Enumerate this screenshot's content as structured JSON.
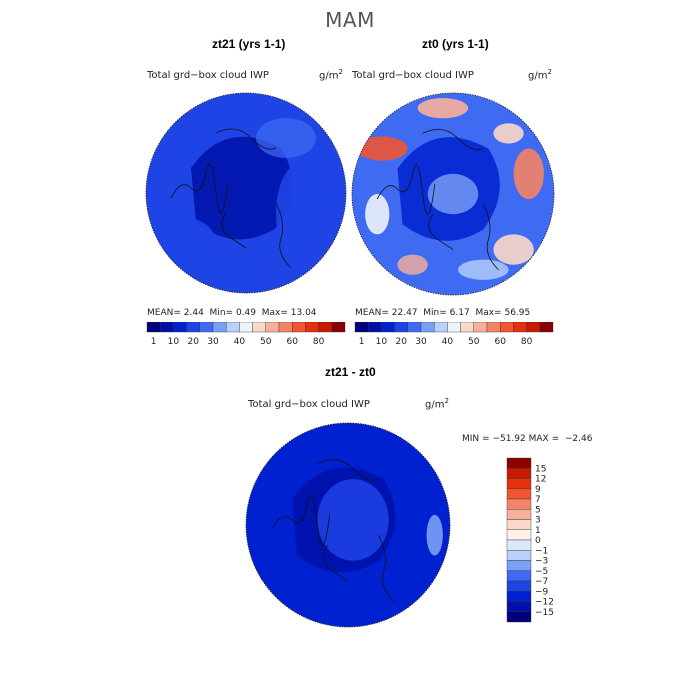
{
  "page": {
    "title": "MAM"
  },
  "colors": {
    "abs_scale": [
      "#00007f",
      "#0010a8",
      "#0021d0",
      "#1e44e6",
      "#3f6bf2",
      "#7aa0f6",
      "#b8d0fb",
      "#eef3fc",
      "#fcd8c8",
      "#f8b09a",
      "#f58366",
      "#ef5533",
      "#e3310d",
      "#c61b00",
      "#8c0000"
    ],
    "diff_scale": [
      "#8c0000",
      "#c61b00",
      "#e3310d",
      "#ef5533",
      "#f58366",
      "#f8b09a",
      "#fcd8c8",
      "#fdf0e6",
      "#dde8fb",
      "#b8d0fb",
      "#7aa0f6",
      "#3f6bf2",
      "#1e44e6",
      "#0021d0",
      "#0010a8",
      "#00007f"
    ]
  },
  "chart_data": [
    {
      "type": "heatmap",
      "projection": "north-polar-stereographic",
      "title": "zt21 (yrs 1-1)",
      "variable": "Total grd−box cloud IWP",
      "units_base": "g/m",
      "units_exp": "2",
      "stats": {
        "mean_label": "MEAN=",
        "mean": "2.44",
        "min_label": "Min=",
        "min": "0.49",
        "max_label": "Max=",
        "max": "13.04"
      },
      "colorbar": {
        "orientation": "horizontal",
        "ticks": [
          "1",
          "10",
          "20",
          "30",
          "40",
          "50",
          "60",
          "80"
        ]
      },
      "field": {
        "background_level": 3,
        "dark_region_level": 1
      }
    },
    {
      "type": "heatmap",
      "projection": "north-polar-stereographic",
      "title": "zt0 (yrs 1-1)",
      "variable": "Total grd−box cloud IWP",
      "units_base": "g/m",
      "units_exp": "2",
      "stats": {
        "mean_label": "MEAN=",
        "mean": "22.47",
        "min_label": "Min=",
        "min": "6.17",
        "max_label": "Max=",
        "max": "56.95"
      },
      "colorbar": {
        "orientation": "horizontal",
        "ticks": [
          "1",
          "10",
          "20",
          "30",
          "40",
          "50",
          "60",
          "80"
        ]
      },
      "field": {
        "background_level": 4,
        "dark_region_level": 2
      }
    },
    {
      "type": "heatmap",
      "projection": "north-polar-stereographic",
      "title": "zt21 - zt0",
      "variable": "Total grd−box cloud IWP",
      "units_base": "g/m",
      "units_exp": "2",
      "stats": {
        "min_label": "MIN =",
        "min": "−51.92",
        "max_label": "MAX =",
        "max": "−2.46"
      },
      "colorbar": {
        "orientation": "vertical",
        "ticks": [
          "15",
          "12",
          "9",
          "7",
          "5",
          "3",
          "1",
          "0",
          "−1",
          "−3",
          "−5",
          "−7",
          "−9",
          "−12",
          "−15"
        ]
      },
      "field": {
        "background_level": 13,
        "dark_region_level": 14
      }
    }
  ]
}
